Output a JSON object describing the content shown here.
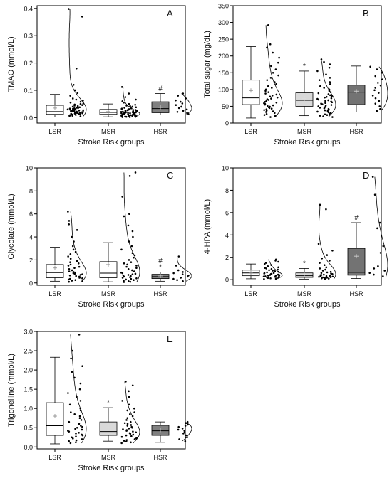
{
  "chart_data": [
    {
      "letter": "A",
      "type": "box-violin",
      "ylabel": "TMAO (mmol/L)",
      "xlabel": "Stroke Risk groups",
      "ylim": [
        -0.02,
        0.41
      ],
      "yticks": [
        0.0,
        0.1,
        0.2,
        0.3,
        0.4
      ],
      "ytick_labels": [
        "0.0",
        "0.1",
        "0.2",
        "0.3",
        "0.4"
      ],
      "categories": [
        "LSR",
        "MSR",
        "HSR"
      ],
      "groups": [
        {
          "name": "LSR",
          "fill": "#ffffff",
          "whisker_low": 0.002,
          "q1": 0.012,
          "median": 0.022,
          "q3": 0.045,
          "whisker_high": 0.085,
          "mean": 0.035,
          "marks": "",
          "points": [
            0.37,
            0.398,
            0.18,
            0.12,
            0.1,
            0.09,
            0.08,
            0.07,
            0.066,
            0.062,
            0.058,
            0.055,
            0.052,
            0.05,
            0.048,
            0.046,
            0.044,
            0.042,
            0.04,
            0.038,
            0.036,
            0.035,
            0.034,
            0.033,
            0.032,
            0.031,
            0.03,
            0.029,
            0.028,
            0.027,
            0.026,
            0.025,
            0.024,
            0.023,
            0.022,
            0.021,
            0.02,
            0.019,
            0.018,
            0.017,
            0.016,
            0.015,
            0.014,
            0.013,
            0.012,
            0.011,
            0.01,
            0.009,
            0.008,
            0.007,
            0.006,
            0.005
          ]
        },
        {
          "name": "MSR",
          "fill": "#ffffff",
          "whisker_low": 0.003,
          "q1": 0.012,
          "median": 0.019,
          "q3": 0.03,
          "whisker_high": 0.05,
          "mean": 0.022,
          "marks": "",
          "points": [
            0.112,
            0.088,
            0.075,
            0.066,
            0.06,
            0.055,
            0.05,
            0.047,
            0.044,
            0.042,
            0.04,
            0.038,
            0.036,
            0.034,
            0.033,
            0.032,
            0.031,
            0.03,
            0.029,
            0.028,
            0.027,
            0.026,
            0.025,
            0.024,
            0.023,
            0.022,
            0.021,
            0.02,
            0.02,
            0.019,
            0.019,
            0.018,
            0.018,
            0.017,
            0.017,
            0.016,
            0.016,
            0.015,
            0.015,
            0.014,
            0.014,
            0.013,
            0.013,
            0.012,
            0.012,
            0.011,
            0.011,
            0.01,
            0.01,
            0.009,
            0.009,
            0.008,
            0.008,
            0.007,
            0.007,
            0.006,
            0.006,
            0.005,
            0.005,
            0.004,
            0.004,
            0.003,
            0.003,
            0.002,
            0.002
          ]
        },
        {
          "name": "HSR",
          "fill": "#808080",
          "whisker_low": 0.01,
          "q1": 0.018,
          "median": 0.033,
          "q3": 0.058,
          "whisker_high": 0.088,
          "mean": 0.038,
          "marks": "#",
          "points": [
            0.088,
            0.08,
            0.07,
            0.063,
            0.058,
            0.052,
            0.046,
            0.04,
            0.035,
            0.03,
            0.025,
            0.021,
            0.017,
            0.013
          ]
        }
      ]
    },
    {
      "letter": "B",
      "type": "box-violin",
      "ylabel": "Total sugar (mg/dL)",
      "xlabel": "Stroke Risk groups",
      "ylim": [
        0,
        350
      ],
      "yticks": [
        0,
        50,
        100,
        150,
        200,
        250,
        300,
        350
      ],
      "ytick_labels": [
        "0",
        "50",
        "100",
        "150",
        "200",
        "250",
        "300",
        "350"
      ],
      "categories": [
        "LSR",
        "MSR",
        "HSR"
      ],
      "groups": [
        {
          "name": "LSR",
          "fill": "#ffffff",
          "whisker_low": 15,
          "q1": 55,
          "median": 75,
          "q3": 128,
          "whisker_high": 228,
          "mean": 97,
          "marks": "",
          "points": [
            292,
            235,
            225,
            210,
            195,
            180,
            170,
            160,
            150,
            142,
            135,
            128,
            122,
            116,
            110,
            105,
            100,
            96,
            92,
            88,
            85,
            82,
            79,
            76,
            73,
            71,
            69,
            67,
            65,
            63,
            61,
            59,
            57,
            55,
            53,
            51,
            49,
            47,
            45,
            43,
            41,
            39,
            37,
            35,
            33,
            30,
            27,
            24,
            21,
            18
          ]
        },
        {
          "name": "MSR",
          "fill": "#d9d9d9",
          "whisker_low": 22,
          "q1": 50,
          "median": 68,
          "q3": 90,
          "whisker_high": 155,
          "mean": 73,
          "marks": "*",
          "points": [
            190,
            182,
            175,
            165,
            155,
            145,
            135,
            128,
            122,
            116,
            110,
            105,
            100,
            96,
            92,
            89,
            86,
            83,
            80,
            78,
            76,
            74,
            72,
            70,
            68,
            66,
            64,
            62,
            60,
            58,
            56,
            54,
            52,
            50,
            48,
            46,
            44,
            42,
            40,
            38,
            36,
            34,
            32,
            30,
            28,
            26,
            24,
            22,
            20,
            18
          ]
        },
        {
          "name": "HSR",
          "fill": "#737373",
          "whisker_low": 33,
          "q1": 55,
          "median": 92,
          "q3": 113,
          "whisker_high": 170,
          "mean": 95,
          "marks": "",
          "points": [
            168,
            160,
            150,
            140,
            130,
            120,
            112,
            105,
            98,
            90,
            82,
            74,
            66,
            58,
            50,
            42,
            36
          ]
        }
      ]
    },
    {
      "letter": "C",
      "type": "box-violin",
      "ylabel": "Glycolate (mmol/L)",
      "xlabel": "Stroke Risk groups",
      "ylim": [
        -0.2,
        10
      ],
      "yticks": [
        0,
        2,
        4,
        6,
        8,
        10
      ],
      "ytick_labels": [
        "0",
        "2",
        "4",
        "6",
        "8",
        "10"
      ],
      "categories": [
        "LSR",
        "MSR",
        "HSR"
      ],
      "groups": [
        {
          "name": "LSR",
          "fill": "#ffffff",
          "whisker_low": 0.15,
          "q1": 0.45,
          "median": 0.9,
          "q3": 1.6,
          "whisker_high": 3.1,
          "mean": 1.3,
          "marks": "",
          "points": [
            6.2,
            5.4,
            5.1,
            4.6,
            4.0,
            3.6,
            3.2,
            2.9,
            2.7,
            2.5,
            2.3,
            2.1,
            1.9,
            1.8,
            1.7,
            1.6,
            1.5,
            1.4,
            1.3,
            1.2,
            1.1,
            1.0,
            0.95,
            0.9,
            0.85,
            0.8,
            0.75,
            0.7,
            0.65,
            0.6,
            0.55,
            0.5,
            0.45,
            0.4,
            0.35,
            0.3,
            0.25,
            0.2,
            0.15,
            0.1
          ]
        },
        {
          "name": "MSR",
          "fill": "#ffffff",
          "whisker_low": 0.1,
          "q1": 0.45,
          "median": 0.85,
          "q3": 1.85,
          "whisker_high": 3.5,
          "mean": 1.6,
          "marks": "",
          "points": [
            9.6,
            9.3,
            7.5,
            6.0,
            5.8,
            5.0,
            4.5,
            4.0,
            3.6,
            3.2,
            2.9,
            2.6,
            2.4,
            2.2,
            2.0,
            1.8,
            1.7,
            1.6,
            1.5,
            1.4,
            1.3,
            1.2,
            1.1,
            1.0,
            0.9,
            0.85,
            0.8,
            0.75,
            0.7,
            0.65,
            0.6,
            0.55,
            0.5,
            0.45,
            0.4,
            0.35,
            0.3,
            0.25,
            0.2,
            0.15,
            0.1,
            0.08
          ]
        },
        {
          "name": "HSR",
          "fill": "#808080",
          "whisker_low": 0.15,
          "q1": 0.38,
          "median": 0.55,
          "q3": 0.75,
          "whisker_high": 0.95,
          "mean": 0.6,
          "marks": "#*",
          "points": [
            2.3,
            1.5,
            1.1,
            0.95,
            0.85,
            0.75,
            0.65,
            0.55,
            0.45,
            0.35,
            0.25,
            0.15
          ]
        }
      ]
    },
    {
      "letter": "D",
      "type": "box-violin",
      "ylabel": "4-HPA (mmol/L)",
      "xlabel": "Stroke Risk groups",
      "ylim": [
        -0.5,
        10
      ],
      "yticks": [
        0,
        2,
        4,
        6,
        8,
        10
      ],
      "ytick_labels": [
        "0",
        "2",
        "4",
        "6",
        "8",
        "10"
      ],
      "categories": [
        "LSR",
        "MSR",
        "HSR"
      ],
      "groups": [
        {
          "name": "LSR",
          "fill": "#ffffff",
          "whisker_low": 0.08,
          "q1": 0.35,
          "median": 0.6,
          "q3": 0.85,
          "whisker_high": 1.4,
          "mean": 0.62,
          "marks": "",
          "points": [
            1.8,
            1.7,
            1.6,
            1.5,
            1.4,
            1.3,
            1.2,
            1.1,
            1.05,
            1.0,
            0.95,
            0.9,
            0.85,
            0.8,
            0.75,
            0.7,
            0.65,
            0.6,
            0.58,
            0.55,
            0.52,
            0.5,
            0.48,
            0.45,
            0.42,
            0.4,
            0.38,
            0.35,
            0.32,
            0.3,
            0.28,
            0.25,
            0.22,
            0.2,
            0.18,
            0.15,
            0.12,
            0.1,
            0.08,
            0.05
          ]
        },
        {
          "name": "MSR",
          "fill": "#d9d9d9",
          "whisker_low": 0.05,
          "q1": 0.2,
          "median": 0.35,
          "q3": 0.6,
          "whisker_high": 1.0,
          "mean": 0.45,
          "marks": "*",
          "points": [
            6.7,
            6.3,
            3.2,
            2.6,
            2.2,
            1.9,
            1.7,
            1.5,
            1.3,
            1.1,
            1.0,
            0.9,
            0.8,
            0.7,
            0.65,
            0.6,
            0.55,
            0.5,
            0.45,
            0.42,
            0.4,
            0.38,
            0.35,
            0.32,
            0.3,
            0.28,
            0.25,
            0.22,
            0.2,
            0.18,
            0.15,
            0.12,
            0.1,
            0.08,
            0.05
          ]
        },
        {
          "name": "HSR",
          "fill": "#737373",
          "whisker_low": 0.1,
          "q1": 0.4,
          "median": 0.65,
          "q3": 2.8,
          "whisker_high": 5.1,
          "mean": 2.1,
          "marks": "#",
          "points": [
            9.2,
            7.6,
            5.1,
            4.6,
            3.0,
            2.4,
            1.2,
            1.0,
            0.8,
            0.6,
            0.45,
            0.3
          ]
        }
      ]
    },
    {
      "letter": "E",
      "type": "box-violin",
      "ylabel": "Trigonelline (mmol/L)",
      "xlabel": "Stroke Risk groups",
      "ylim": [
        -0.05,
        3.0
      ],
      "yticks": [
        0.0,
        0.5,
        1.0,
        1.5,
        2.0,
        2.5,
        3.0
      ],
      "ytick_labels": [
        "0.0",
        "0.5",
        "1.0",
        "1.5",
        "2.0",
        "2.5",
        "3.0"
      ],
      "categories": [
        "LSR",
        "MSR",
        "HSR"
      ],
      "groups": [
        {
          "name": "LSR",
          "fill": "#ffffff",
          "whisker_low": 0.08,
          "q1": 0.3,
          "median": 0.55,
          "q3": 1.15,
          "whisker_high": 2.33,
          "mean": 0.8,
          "marks": "",
          "points": [
            2.92,
            2.5,
            2.3,
            2.1,
            1.95,
            1.8,
            1.65,
            1.5,
            1.4,
            1.3,
            1.2,
            1.1,
            1.0,
            0.95,
            0.9,
            0.85,
            0.8,
            0.75,
            0.7,
            0.65,
            0.6,
            0.55,
            0.52,
            0.5,
            0.47,
            0.45,
            0.42,
            0.4,
            0.37,
            0.35,
            0.32,
            0.3,
            0.27,
            0.25,
            0.22,
            0.2,
            0.17,
            0.15,
            0.12,
            0.1
          ]
        },
        {
          "name": "MSR",
          "fill": "#d9d9d9",
          "whisker_low": 0.15,
          "q1": 0.3,
          "median": 0.4,
          "q3": 0.65,
          "whisker_high": 1.02,
          "mean": 0.5,
          "marks": "*",
          "points": [
            1.7,
            1.6,
            1.45,
            1.3,
            1.2,
            1.1,
            1.0,
            0.95,
            0.9,
            0.85,
            0.8,
            0.75,
            0.7,
            0.65,
            0.62,
            0.6,
            0.57,
            0.55,
            0.52,
            0.5,
            0.48,
            0.46,
            0.44,
            0.42,
            0.4,
            0.38,
            0.36,
            0.34,
            0.32,
            0.3,
            0.28,
            0.26,
            0.24,
            0.22,
            0.2,
            0.18,
            0.16,
            0.14,
            0.12,
            0.1
          ]
        },
        {
          "name": "HSR",
          "fill": "#808080",
          "whisker_low": 0.12,
          "q1": 0.3,
          "median": 0.42,
          "q3": 0.56,
          "whisker_high": 0.65,
          "mean": 0.44,
          "marks": "",
          "points": [
            0.65,
            0.62,
            0.58,
            0.55,
            0.52,
            0.48,
            0.45,
            0.42,
            0.38,
            0.35,
            0.3,
            0.25,
            0.2,
            0.15
          ]
        }
      ]
    }
  ]
}
